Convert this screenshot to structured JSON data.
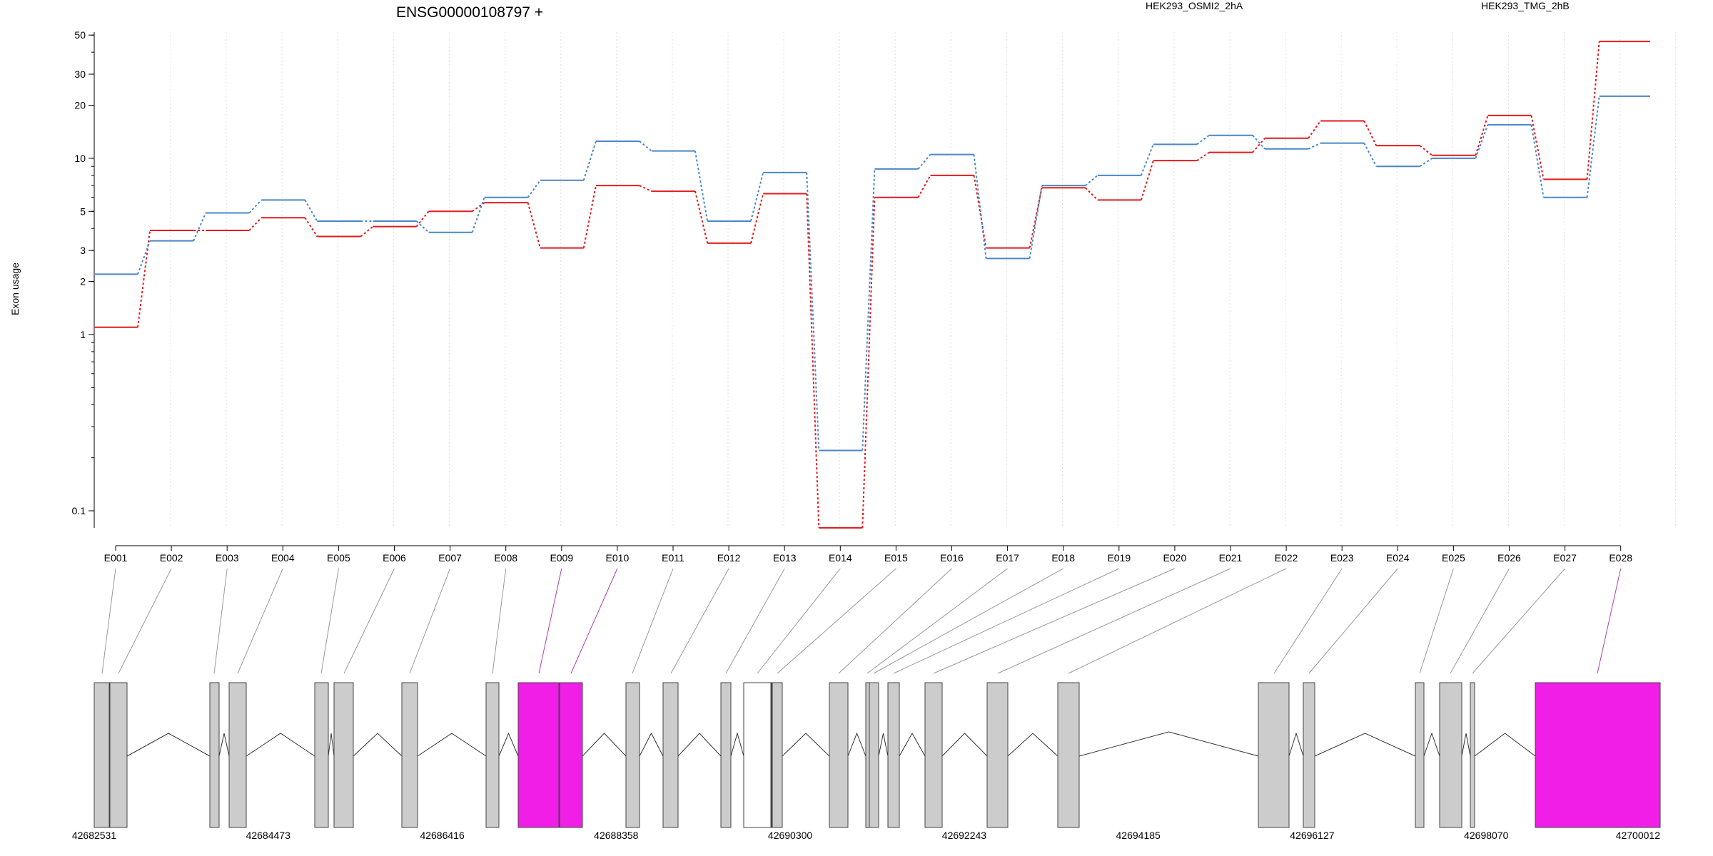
{
  "chart_data": {
    "type": "line",
    "title": "ENSG00000108797 +",
    "ylabel": "Exon usage",
    "y_scale": "log",
    "ylim": [
      0.08,
      52
    ],
    "y_ticks": [
      0.1,
      1,
      2,
      3,
      5,
      10,
      20,
      30,
      50
    ],
    "categories": [
      "E001",
      "E002",
      "E003",
      "E004",
      "E005",
      "E006",
      "E007",
      "E008",
      "E009",
      "E010",
      "E011",
      "E012",
      "E013",
      "E014",
      "E015",
      "E016",
      "E017",
      "E018",
      "E019",
      "E020",
      "E021",
      "E022",
      "E023",
      "E024",
      "E025",
      "E026",
      "E027",
      "E028"
    ],
    "highlight_categories": [
      "E009",
      "E010",
      "E028"
    ],
    "series": [
      {
        "name": "HEK293_OSMI2_2hA",
        "color": "#e41a1c",
        "values": [
          1.1,
          3.9,
          3.9,
          4.6,
          3.6,
          4.1,
          5.0,
          5.6,
          3.1,
          7.0,
          6.5,
          3.3,
          6.3,
          0.08,
          6.0,
          8.0,
          3.1,
          6.8,
          5.8,
          9.7,
          10.8,
          13.0,
          16.3,
          11.8,
          10.4,
          17.5,
          7.6,
          46.0
        ]
      },
      {
        "name": "HEK293_TMG_2hB",
        "color": "#4a86c8",
        "values": [
          2.2,
          3.4,
          4.9,
          5.8,
          4.4,
          4.4,
          3.8,
          6.0,
          7.5,
          12.5,
          11.0,
          4.4,
          8.3,
          0.22,
          8.7,
          10.5,
          2.7,
          7.0,
          8.0,
          12.0,
          13.5,
          11.3,
          12.2,
          9.0,
          10.0,
          15.5,
          6.0,
          22.5
        ]
      }
    ],
    "grid": true,
    "legend_position": "top"
  },
  "gene_model": {
    "coordinate_labels": [
      "42682531",
      "42684473",
      "42686416",
      "42688358",
      "42690300",
      "42692243",
      "42694185",
      "42696127",
      "42698070",
      "42700012"
    ],
    "exon_color": "#cccccc",
    "highlight_color": "#f01ee6",
    "intron_color": "#333333"
  }
}
